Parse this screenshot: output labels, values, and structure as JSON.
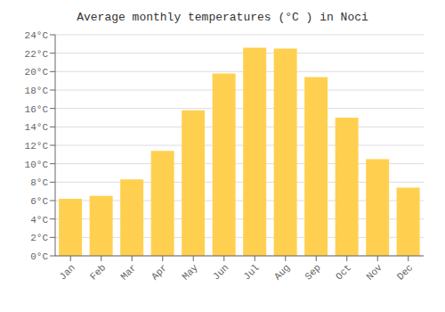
{
  "chart_data": {
    "type": "bar",
    "title": "Average monthly temperatures (°C ) in Noci",
    "categories": [
      "Jan",
      "Feb",
      "Mar",
      "Apr",
      "May",
      "Jun",
      "Jul",
      "Aug",
      "Sep",
      "Oct",
      "Nov",
      "Dec"
    ],
    "values": [
      6.2,
      6.5,
      8.3,
      11.4,
      15.8,
      19.8,
      22.6,
      22.5,
      19.4,
      15.0,
      10.5,
      7.4
    ],
    "color": "#FFD050",
    "ylim": [
      0,
      24
    ],
    "yticks": [
      {
        "value": 0,
        "label": "0°C"
      },
      {
        "value": 2,
        "label": "2°C"
      },
      {
        "value": 4,
        "label": "4°C"
      },
      {
        "value": 6,
        "label": "6°C"
      },
      {
        "value": 8,
        "label": "8°C"
      },
      {
        "value": 10,
        "label": "10°C"
      },
      {
        "value": 12,
        "label": "12°C"
      },
      {
        "value": 14,
        "label": "14°C"
      },
      {
        "value": 16,
        "label": "16°C"
      },
      {
        "value": 18,
        "label": "18°C"
      },
      {
        "value": 20,
        "label": "20°C"
      },
      {
        "value": 22,
        "label": "22°C"
      },
      {
        "value": 24,
        "label": "24°C"
      }
    ],
    "grid": true
  }
}
